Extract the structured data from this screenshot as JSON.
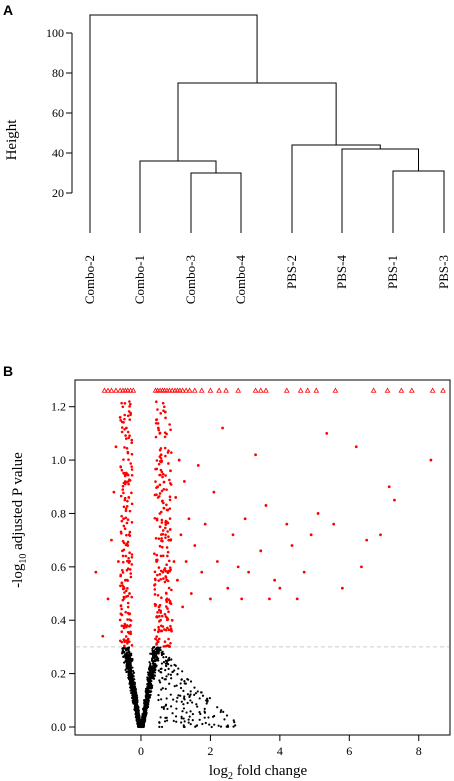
{
  "chart_data": [
    {
      "panel": "A",
      "type": "dendrogram",
      "ylabel": "Height",
      "yticks": [
        20,
        40,
        60,
        80,
        100
      ],
      "ylim": [
        0,
        110
      ],
      "leaves": [
        "Combo-2",
        "Combo-1",
        "Combo-3",
        "Combo-4",
        "PBS-2",
        "PBS-4",
        "PBS-1",
        "PBS-3"
      ],
      "merges": [
        {
          "left": [
            2
          ],
          "right": [
            3
          ],
          "height": 30
        },
        {
          "left": [
            6
          ],
          "right": [
            7
          ],
          "height": 31
        },
        {
          "left": [
            1
          ],
          "right": [
            2,
            3
          ],
          "height": 36
        },
        {
          "left": [
            5
          ],
          "right": [
            6,
            7
          ],
          "height": 42
        },
        {
          "left": [
            4
          ],
          "right": [
            5,
            6,
            7
          ],
          "height": 44
        },
        {
          "left": [
            1,
            2,
            3
          ],
          "right": [
            4,
            5,
            6,
            7
          ],
          "height": 75
        },
        {
          "left": [
            0
          ],
          "right": [
            1,
            2,
            3,
            4,
            5,
            6,
            7
          ],
          "height": 109
        }
      ]
    },
    {
      "panel": "B",
      "type": "scatter",
      "xlabel_main": "log",
      "xlabel_sub": "2",
      "xlabel_rest": " fold change",
      "ylabel_pre": "-log",
      "ylabel_sub": "10",
      "ylabel_rest": " adjusted P value",
      "xlim": [
        -1.9,
        8.9
      ],
      "ylim": [
        -0.03,
        1.3
      ],
      "xticks": [
        0,
        2,
        4,
        6,
        8
      ],
      "yticks": [
        0.0,
        0.2,
        0.4,
        0.6,
        0.8,
        1.0,
        1.2
      ],
      "threshold_y": 0.3,
      "cap_y": 1.26,
      "colors": {
        "significant": "#ff0000",
        "nonsignificant": "#000000",
        "threshold": "#cccccc"
      },
      "capped_points_x": [
        -1.05,
        -0.95,
        -0.85,
        -0.72,
        -0.6,
        -0.52,
        -0.45,
        -0.38,
        -0.3,
        -0.22,
        0.42,
        0.48,
        0.55,
        0.62,
        0.68,
        0.75,
        0.82,
        0.9,
        0.98,
        1.05,
        1.12,
        1.2,
        1.3,
        1.4,
        1.55,
        1.75,
        2.0,
        2.25,
        2.45,
        2.8,
        3.3,
        3.45,
        3.6,
        4.2,
        4.6,
        4.8,
        5.05,
        5.6,
        6.7,
        7.1,
        7.5,
        7.8,
        8.4,
        8.7
      ],
      "significant_points": [
        [
          -1.3,
          0.58
        ],
        [
          -1.1,
          0.34
        ],
        [
          -0.95,
          0.48
        ],
        [
          -0.85,
          0.7
        ],
        [
          -0.78,
          0.88
        ],
        [
          -0.72,
          1.05
        ],
        [
          -0.65,
          0.62
        ],
        [
          -0.6,
          1.16
        ],
        [
          -0.55,
          0.42
        ],
        [
          -0.5,
          0.78
        ],
        [
          -0.48,
          0.95
        ],
        [
          -0.45,
          0.55
        ],
        [
          -0.42,
          1.12
        ],
        [
          -0.4,
          0.38
        ],
        [
          -0.38,
          0.68
        ],
        [
          -0.36,
          0.32
        ],
        [
          -0.35,
          0.86
        ],
        [
          -0.33,
          0.5
        ],
        [
          0.42,
          0.33
        ],
        [
          0.45,
          0.62
        ],
        [
          0.48,
          0.9
        ],
        [
          0.5,
          1.12
        ],
        [
          0.52,
          0.45
        ],
        [
          0.55,
          0.75
        ],
        [
          0.58,
          1.02
        ],
        [
          0.6,
          0.36
        ],
        [
          0.63,
          0.58
        ],
        [
          0.66,
          0.82
        ],
        [
          0.7,
          1.18
        ],
        [
          0.75,
          0.48
        ],
        [
          0.8,
          0.7
        ],
        [
          0.85,
          0.96
        ],
        [
          0.9,
          0.4
        ],
        [
          0.95,
          0.62
        ],
        [
          1.0,
          0.86
        ],
        [
          1.05,
          0.55
        ],
        [
          1.1,
          1.0
        ],
        [
          1.15,
          0.72
        ],
        [
          1.2,
          0.45
        ],
        [
          1.25,
          0.92
        ],
        [
          1.3,
          0.62
        ],
        [
          1.38,
          0.78
        ],
        [
          1.45,
          0.5
        ],
        [
          1.55,
          0.68
        ],
        [
          1.65,
          0.98
        ],
        [
          1.75,
          0.58
        ],
        [
          1.85,
          0.76
        ],
        [
          2.0,
          0.48
        ],
        [
          2.1,
          0.88
        ],
        [
          2.2,
          0.62
        ],
        [
          2.35,
          1.12
        ],
        [
          2.5,
          0.52
        ],
        [
          2.65,
          0.72
        ],
        [
          2.8,
          0.6
        ],
        [
          2.9,
          0.48
        ],
        [
          3.0,
          0.78
        ],
        [
          3.1,
          0.58
        ],
        [
          3.3,
          1.02
        ],
        [
          3.45,
          0.66
        ],
        [
          3.6,
          0.83
        ],
        [
          3.7,
          0.48
        ],
        [
          3.85,
          0.55
        ],
        [
          4.0,
          0.52
        ],
        [
          4.2,
          0.76
        ],
        [
          4.35,
          0.68
        ],
        [
          4.5,
          0.48
        ],
        [
          4.7,
          0.58
        ],
        [
          4.9,
          0.72
        ],
        [
          5.1,
          0.8
        ],
        [
          5.35,
          1.1
        ],
        [
          5.55,
          0.76
        ],
        [
          5.8,
          0.52
        ],
        [
          6.2,
          1.05
        ],
        [
          6.35,
          0.6
        ],
        [
          6.5,
          0.7
        ],
        [
          6.9,
          0.72
        ],
        [
          7.15,
          0.9
        ],
        [
          7.3,
          0.85
        ],
        [
          8.35,
          1.0
        ]
      ]
    }
  ]
}
